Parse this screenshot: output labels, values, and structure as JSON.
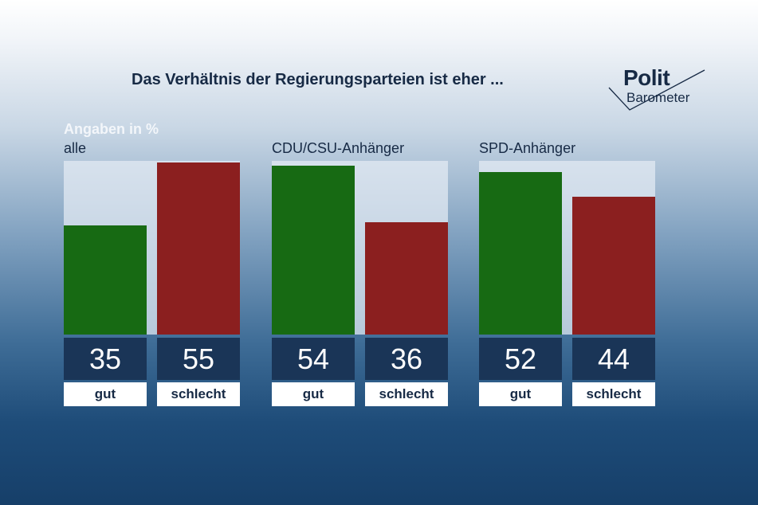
{
  "title": "Das Verhältnis der Regierungsparteien ist eher ...",
  "logo": {
    "line1": "Polit",
    "line2": "Barometer"
  },
  "note": "Angaben in %",
  "colors": {
    "gut": "#176a13",
    "schlecht": "#8b1f1f",
    "value_box": "#1a3557"
  },
  "chart_data": {
    "type": "bar",
    "ylim": [
      0,
      55
    ],
    "categories": [
      "gut",
      "schlecht"
    ],
    "groups": [
      {
        "name": "alle",
        "values": [
          35,
          55
        ],
        "labels": [
          "35",
          "55"
        ]
      },
      {
        "name": "CDU/CSU-Anhänger",
        "values": [
          54,
          36
        ],
        "labels": [
          "54",
          "36"
        ]
      },
      {
        "name": "SPD-Anhänger",
        "values": [
          52,
          44
        ],
        "labels": [
          "52",
          "44"
        ]
      }
    ]
  }
}
